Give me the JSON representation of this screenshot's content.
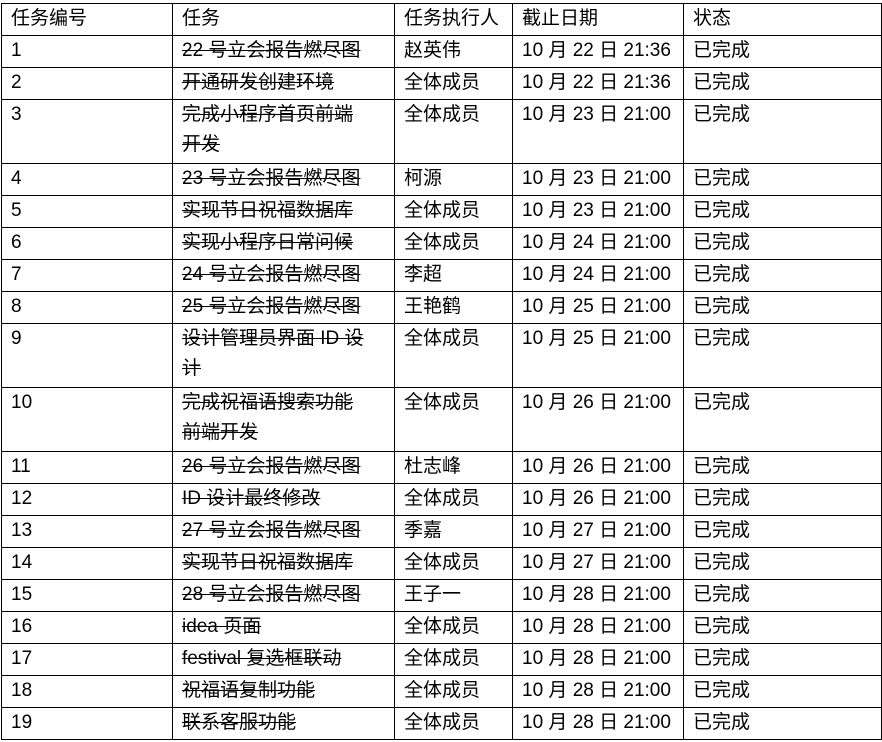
{
  "table": {
    "headers": {
      "id": "任务编号",
      "task": "任务",
      "executor": "任务执行人",
      "deadline": "截止日期",
      "status": "状态"
    },
    "rows": [
      {
        "id": "1",
        "task": "22 号立会报告燃尽图",
        "executor": "赵英伟",
        "deadline": "10 月 22 日 21:36",
        "status": "已完成"
      },
      {
        "id": "2",
        "task": "开通研发创建环境",
        "executor": "全体成员",
        "deadline": "10 月 22 日 21:36",
        "status": "已完成"
      },
      {
        "id": "3",
        "task": "完成小程序首页前端\n开发",
        "executor": "全体成员",
        "deadline": "10 月 23 日 21:00",
        "status": "已完成"
      },
      {
        "id": "4",
        "task": "23 号立会报告燃尽图",
        "executor": "柯源",
        "deadline": "10 月 23 日 21:00",
        "status": "已完成"
      },
      {
        "id": "5",
        "task": "实现节日祝福数据库",
        "executor": "全体成员",
        "deadline": "10 月 23 日 21:00",
        "status": "已完成"
      },
      {
        "id": "6",
        "task": "实现小程序日常问候",
        "executor": "全体成员",
        "deadline": "10 月 24 日 21:00",
        "status": "已完成"
      },
      {
        "id": "7",
        "task": "24 号立会报告燃尽图",
        "executor": "李超",
        "deadline": "10 月 24 日 21:00",
        "status": "已完成"
      },
      {
        "id": "8",
        "task": "25 号立会报告燃尽图",
        "executor": "王艳鹤",
        "deadline": "10 月 25 日 21:00",
        "status": "已完成"
      },
      {
        "id": "9",
        "task": "设计管理员界面 ID 设\n计",
        "executor": "全体成员",
        "deadline": "10 月 25 日 21:00",
        "status": "已完成"
      },
      {
        "id": "10",
        "task": "完成祝福语搜索功能\n前端开发",
        "executor": "全体成员",
        "deadline": "10 月 26 日 21:00",
        "status": "已完成"
      },
      {
        "id": "11",
        "task": "26 号立会报告燃尽图",
        "executor": "杜志峰",
        "deadline": "10 月 26 日 21:00",
        "status": "已完成"
      },
      {
        "id": "12",
        "task": "ID 设计最终修改",
        "executor": "全体成员",
        "deadline": "10 月 26 日 21:00",
        "status": "已完成"
      },
      {
        "id": "13",
        "task": "27 号立会报告燃尽图",
        "executor": "季嘉",
        "deadline": "10 月 27 日 21:00",
        "status": "已完成"
      },
      {
        "id": "14",
        "task": "实现节日祝福数据库",
        "executor": "全体成员",
        "deadline": "10 月 27 日 21:00",
        "status": "已完成"
      },
      {
        "id": "15",
        "task": "28 号立会报告燃尽图",
        "executor": "王子一",
        "deadline": "10 月 28 日 21:00",
        "status": "已完成"
      },
      {
        "id": "16",
        "task": "idea 页面",
        "executor": "全体成员",
        "deadline": "10 月 28 日 21:00",
        "status": "已完成"
      },
      {
        "id": "17",
        "task": "festival 复选框联动",
        "executor": "全体成员",
        "deadline": "10 月 28 日 21:00",
        "status": "已完成"
      },
      {
        "id": "18",
        "task": "祝福语复制功能",
        "executor": "全体成员",
        "deadline": "10 月 28 日 21:00",
        "status": "已完成"
      },
      {
        "id": "19",
        "task": "联系客服功能",
        "executor": "全体成员",
        "deadline": "10 月 28 日 21:00",
        "status": "已完成"
      }
    ]
  }
}
